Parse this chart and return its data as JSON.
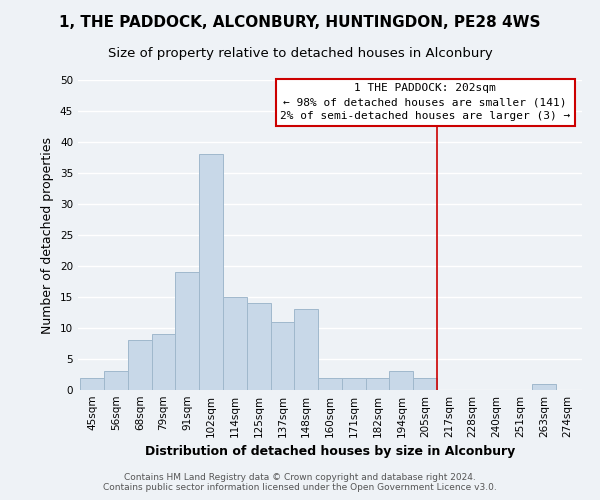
{
  "title": "1, THE PADDOCK, ALCONBURY, HUNTINGDON, PE28 4WS",
  "subtitle": "Size of property relative to detached houses in Alconbury",
  "xlabel": "Distribution of detached houses by size in Alconbury",
  "ylabel": "Number of detached properties",
  "bar_color": "#c8d8e8",
  "bar_edge_color": "#a0b8cc",
  "bin_labels": [
    "45sqm",
    "56sqm",
    "68sqm",
    "79sqm",
    "91sqm",
    "102sqm",
    "114sqm",
    "125sqm",
    "137sqm",
    "148sqm",
    "160sqm",
    "171sqm",
    "182sqm",
    "194sqm",
    "205sqm",
    "217sqm",
    "228sqm",
    "240sqm",
    "251sqm",
    "263sqm",
    "274sqm"
  ],
  "bar_heights": [
    2,
    3,
    8,
    9,
    19,
    38,
    15,
    14,
    11,
    13,
    2,
    2,
    2,
    3,
    2,
    0,
    0,
    0,
    0,
    1,
    0
  ],
  "ylim": [
    0,
    50
  ],
  "yticks": [
    0,
    5,
    10,
    15,
    20,
    25,
    30,
    35,
    40,
    45,
    50
  ],
  "property_line_x": 14.5,
  "property_line_color": "#cc0000",
  "annotation_title": "1 THE PADDOCK: 202sqm",
  "annotation_line1": "← 98% of detached houses are smaller (141)",
  "annotation_line2": "2% of semi-detached houses are larger (3) →",
  "annotation_box_facecolor": "#ffffff",
  "annotation_box_edgecolor": "#cc0000",
  "footer_line1": "Contains HM Land Registry data © Crown copyright and database right 2024.",
  "footer_line2": "Contains public sector information licensed under the Open Government Licence v3.0.",
  "background_color": "#eef2f6",
  "grid_color": "#ffffff",
  "title_fontsize": 11,
  "subtitle_fontsize": 9.5,
  "axis_label_fontsize": 9,
  "tick_fontsize": 7.5,
  "footer_fontsize": 6.5,
  "annotation_fontsize": 8
}
